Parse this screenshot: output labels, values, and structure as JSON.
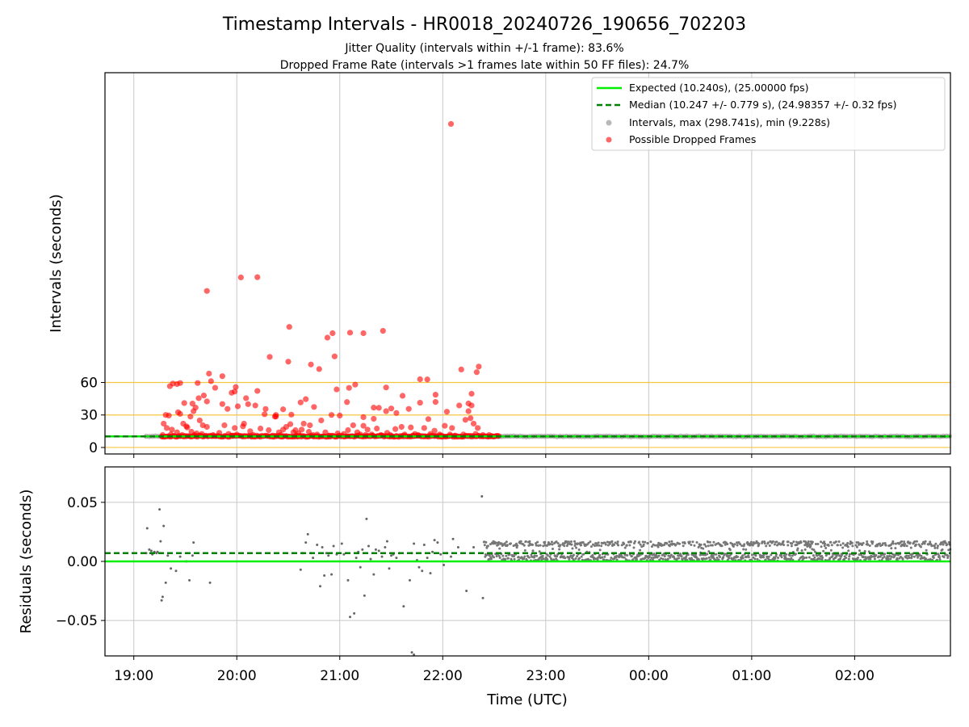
{
  "figure": {
    "title": "Timestamp Intervals - HR0018_20240726_190656_702203",
    "subtitle_1": "Jitter Quality (intervals within +/-1 frame): 83.6%",
    "subtitle_2": "Dropped Frame Rate (intervals >1 frames late within 50 FF files): 24.7%"
  },
  "colors": {
    "expected": "#00ee00",
    "median": "#008000",
    "intervals": "#888888",
    "dropped": "#ff0000",
    "hlines": "#f5c542",
    "grid": "#c8c8c8"
  },
  "chart_data": [
    {
      "type": "scatter",
      "name": "intervals-panel",
      "xlabel": "",
      "ylabel": "Intervals (seconds)",
      "x_unit": "hours since 19:00 UTC",
      "xlim": [
        -0.28,
        7.93
      ],
      "ylim": [
        -6,
        346
      ],
      "y_ticks": [
        0,
        30,
        60
      ],
      "y_tick_labels": [
        "0",
        "30",
        "60"
      ],
      "x_ticks": [
        0,
        1,
        2,
        3,
        4,
        5,
        6,
        7
      ],
      "x_tick_labels": [
        "19:00",
        "20:00",
        "21:00",
        "22:00",
        "23:00",
        "00:00",
        "01:00",
        "02:00"
      ],
      "hlines": [
        0,
        30,
        60
      ],
      "grid": "x",
      "legend": {
        "placement": "upper right",
        "expected": "Expected (10.240s), (25.00000 fps)",
        "median": "Median (10.247 +/- 0.779 s), (24.98357 +/- 0.32 fps)",
        "intervals": "Intervals, max (298.741s), min (9.228s)",
        "dropped": "Possible Dropped Frames"
      },
      "expected_value": 10.24,
      "median_value": 10.247,
      "intervals_range": [
        0.12,
        7.93
      ],
      "intervals_value": 10.24,
      "dense_range": [
        3.4,
        3.52
      ],
      "dense_value": 10.3,
      "dropped_points": [
        [
          3.08,
          298.7
        ],
        [
          1.04,
          157.0
        ],
        [
          0.71,
          144.5
        ],
        [
          1.2,
          157.2
        ],
        [
          1.51,
          111.3
        ],
        [
          1.93,
          105.5
        ],
        [
          2.1,
          106.0
        ],
        [
          2.23,
          105.5
        ],
        [
          2.42,
          107.7
        ],
        [
          1.88,
          101.4
        ],
        [
          1.95,
          84.1
        ],
        [
          1.97,
          53.6
        ],
        [
          2.07,
          41.9
        ],
        [
          2.33,
          36.8
        ],
        [
          2.45,
          55.4
        ],
        [
          2.61,
          47.7
        ],
        [
          2.78,
          63.0
        ],
        [
          2.85,
          62.8
        ],
        [
          2.93,
          48.7
        ],
        [
          0.79,
          55.1
        ],
        [
          0.99,
          55.8
        ],
        [
          1.11,
          40.0
        ],
        [
          1.32,
          83.6
        ],
        [
          1.5,
          79.2
        ],
        [
          1.67,
          44.6
        ],
        [
          1.72,
          76.6
        ],
        [
          1.8,
          72.4
        ],
        [
          0.73,
          68.2
        ],
        [
          0.86,
          65.8
        ],
        [
          1.2,
          52.2
        ],
        [
          1.38,
          30.0
        ],
        [
          1.45,
          16.5
        ],
        [
          1.57,
          16.0
        ],
        [
          1.63,
          16.5
        ],
        [
          3.35,
          74.7
        ],
        [
          3.33,
          69.5
        ],
        [
          3.18,
          72.0
        ],
        [
          3.16,
          38.8
        ],
        [
          3.25,
          33.5
        ],
        [
          3.28,
          49.6
        ],
        [
          3.25,
          40.6
        ],
        [
          3.28,
          38.8
        ],
        [
          0.38,
          59.0
        ],
        [
          0.35,
          56.6
        ],
        [
          0.42,
          58.5
        ],
        [
          0.45,
          59.5
        ],
        [
          0.62,
          59.5
        ],
        [
          0.75,
          61.2
        ],
        [
          0.98,
          51.6
        ],
        [
          1.09,
          45.5
        ],
        [
          1.18,
          38.8
        ],
        [
          1.27,
          30.7
        ],
        [
          1.37,
          28.5
        ],
        [
          1.53,
          30.3
        ],
        [
          1.62,
          41.6
        ],
        [
          1.75,
          37.4
        ],
        [
          2.09,
          55.0
        ],
        [
          2.15,
          58.0
        ],
        [
          2.33,
          26.5
        ],
        [
          2.38,
          36.6
        ],
        [
          2.45,
          33.5
        ],
        [
          2.55,
          31.8
        ],
        [
          2.67,
          35.6
        ],
        [
          0.31,
          30.0
        ],
        [
          0.34,
          29.5
        ],
        [
          0.55,
          28.5
        ],
        [
          0.71,
          42.5
        ],
        [
          0.86,
          40.1
        ],
        [
          0.91,
          35.6
        ],
        [
          1.01,
          38.0
        ],
        [
          1.13,
          15.0
        ],
        [
          2.78,
          41.3
        ],
        [
          2.86,
          26.2
        ],
        [
          3.04,
          33.0
        ],
        [
          2.23,
          28.0
        ],
        [
          2.5,
          36.0
        ],
        [
          2.93,
          42.0
        ],
        [
          0.45,
          31.0
        ],
        [
          0.58,
          33.5
        ],
        [
          0.6,
          36.8
        ],
        [
          0.49,
          41.0
        ],
        [
          0.57,
          40.5
        ],
        [
          0.63,
          45.5
        ],
        [
          0.68,
          48.0
        ],
        [
          0.95,
          50.5
        ],
        [
          0.98,
          18.0
        ],
        [
          1.07,
          22.0
        ],
        [
          1.28,
          35.5
        ],
        [
          1.38,
          28.5
        ],
        [
          1.45,
          35.2
        ],
        [
          1.52,
          21.5
        ],
        [
          0.43,
          32.5
        ],
        [
          0.48,
          22.0
        ],
        [
          0.51,
          19.5
        ],
        [
          0.64,
          25.0
        ],
        [
          0.67,
          20.5
        ],
        [
          0.71,
          19.0
        ],
        [
          1.65,
          22.0
        ],
        [
          1.71,
          20.5
        ],
        [
          1.82,
          25.0
        ],
        [
          1.92,
          30.0
        ],
        [
          2.0,
          29.5
        ],
        [
          2.13,
          20.5
        ],
        [
          2.23,
          20.0
        ],
        [
          2.27,
          16.5
        ],
        [
          2.36,
          17.5
        ],
        [
          2.46,
          13.5
        ],
        [
          2.54,
          17.0
        ],
        [
          2.6,
          19.0
        ],
        [
          2.69,
          18.5
        ],
        [
          2.73,
          12.5
        ],
        [
          2.82,
          18.0
        ],
        [
          2.88,
          12.5
        ],
        [
          2.92,
          15.5
        ],
        [
          3.02,
          20.0
        ],
        [
          3.09,
          18.0
        ],
        [
          3.22,
          25.5
        ],
        [
          3.27,
          27.0
        ],
        [
          3.3,
          22.0
        ],
        [
          3.34,
          18.0
        ],
        [
          0.29,
          22.0
        ],
        [
          0.32,
          18.0
        ],
        [
          0.37,
          16.5
        ],
        [
          0.42,
          14.0
        ],
        [
          0.52,
          18.5
        ],
        [
          0.56,
          14.5
        ],
        [
          0.61,
          13.0
        ],
        [
          0.83,
          13.5
        ],
        [
          0.88,
          20.5
        ],
        [
          0.92,
          12.5
        ],
        [
          1.0,
          12.0
        ],
        [
          1.06,
          19.5
        ],
        [
          1.23,
          17.5
        ],
        [
          1.31,
          16.0
        ],
        [
          1.41,
          14.0
        ],
        [
          1.48,
          19.0
        ],
        [
          1.55,
          14.0
        ],
        [
          1.6,
          13.0
        ],
        [
          1.7,
          14.5
        ],
        [
          1.78,
          12.0
        ],
        [
          1.86,
          14.0
        ],
        [
          1.9,
          11.0
        ],
        [
          1.98,
          13.0
        ],
        [
          2.04,
          12.5
        ],
        [
          2.08,
          16.0
        ],
        [
          2.17,
          14.0
        ],
        [
          2.2,
          12.0
        ],
        [
          2.31,
          12.0
        ],
        [
          2.4,
          11.5
        ],
        [
          2.49,
          11.5
        ],
        [
          2.63,
          12.0
        ],
        [
          2.76,
          11.5
        ],
        [
          2.97,
          12.0
        ],
        [
          3.07,
          12.0
        ],
        [
          3.2,
          12.0
        ],
        [
          3.32,
          12.5
        ],
        [
          0.28,
          11.5
        ],
        [
          0.36,
          12.0
        ],
        [
          0.47,
          11.5
        ],
        [
          0.59,
          11.5
        ],
        [
          0.66,
          12.5
        ],
        [
          0.77,
          11.5
        ],
        [
          0.96,
          11.0
        ],
        [
          1.16,
          11.5
        ],
        [
          1.35,
          11.0
        ],
        [
          1.43,
          11.5
        ],
        [
          1.58,
          11.0
        ],
        [
          1.74,
          11.5
        ],
        [
          2.25,
          11.5
        ],
        [
          2.71,
          11.0
        ],
        [
          2.99,
          11.0
        ],
        [
          3.12,
          11.0
        ],
        [
          3.39,
          11.5
        ],
        [
          3.45,
          11.5
        ]
      ],
      "dropped_band": {
        "x_range": [
          0.27,
          3.55
        ],
        "y": 10.4
      }
    },
    {
      "type": "scatter",
      "name": "residuals-panel",
      "xlabel": "Time (UTC)",
      "ylabel": "Residuals (seconds)",
      "x_unit": "hours since 19:00 UTC",
      "xlim": [
        -0.28,
        7.93
      ],
      "ylim": [
        -0.08,
        0.08
      ],
      "y_ticks": [
        -0.05,
        0.0,
        0.05
      ],
      "y_tick_labels": [
        "−0.05",
        "0.00",
        "0.05"
      ],
      "x_ticks": [
        0,
        1,
        2,
        3,
        4,
        5,
        6,
        7
      ],
      "x_tick_labels": [
        "19:00",
        "20:00",
        "21:00",
        "22:00",
        "23:00",
        "00:00",
        "01:00",
        "02:00"
      ],
      "grid": "both",
      "expected_value": 0.0,
      "median_value": 0.007,
      "dense_range": [
        3.4,
        7.93
      ],
      "dense_band": [
        0.0005,
        0.017
      ],
      "sparse_points": [
        [
          0.13,
          0.028
        ],
        [
          0.15,
          0.01
        ],
        [
          0.17,
          0.009
        ],
        [
          0.2,
          0.008
        ],
        [
          0.22,
          0.007
        ],
        [
          0.25,
          0.044
        ],
        [
          0.26,
          0.017
        ],
        [
          0.27,
          -0.033
        ],
        [
          0.28,
          -0.03
        ],
        [
          0.29,
          0.03
        ],
        [
          0.31,
          -0.018
        ],
        [
          0.36,
          -0.006
        ],
        [
          0.41,
          -0.008
        ],
        [
          0.45,
          0.004
        ],
        [
          0.51,
          0.0
        ],
        [
          0.54,
          -0.016
        ],
        [
          0.57,
          0.005
        ],
        [
          0.58,
          0.016
        ],
        [
          0.74,
          -0.018
        ],
        [
          0.12,
          0.007
        ],
        [
          0.18,
          0.006
        ],
        [
          0.23,
          0.008
        ],
        [
          0.33,
          0.005
        ],
        [
          1.62,
          -0.007
        ],
        [
          1.64,
          0.007
        ],
        [
          1.67,
          0.016
        ],
        [
          1.69,
          0.023
        ],
        [
          1.72,
          0.007
        ],
        [
          1.74,
          0.003
        ],
        [
          1.78,
          0.014
        ],
        [
          1.81,
          -0.021
        ],
        [
          1.83,
          0.012
        ],
        [
          1.85,
          -0.012
        ],
        [
          1.87,
          0.007
        ],
        [
          1.89,
          0.005
        ],
        [
          1.92,
          -0.011
        ],
        [
          1.94,
          0.013
        ],
        [
          1.97,
          0.006
        ],
        [
          2.02,
          0.015
        ],
        [
          2.08,
          -0.016
        ],
        [
          2.1,
          -0.047
        ],
        [
          2.14,
          -0.044
        ],
        [
          2.18,
          0.008
        ],
        [
          2.2,
          -0.005
        ],
        [
          2.22,
          0.01
        ],
        [
          2.24,
          -0.029
        ],
        [
          2.26,
          0.036
        ],
        [
          2.28,
          0.013
        ],
        [
          2.3,
          0.002
        ],
        [
          2.33,
          -0.011
        ],
        [
          2.35,
          0.01
        ],
        [
          2.38,
          0.009
        ],
        [
          2.41,
          0.004
        ],
        [
          2.44,
          0.012
        ],
        [
          2.46,
          0.017
        ],
        [
          2.48,
          -0.006
        ],
        [
          2.52,
          0.006
        ],
        [
          2.55,
          0.003
        ],
        [
          2.58,
          0.007
        ],
        [
          2.62,
          -0.038
        ],
        [
          2.68,
          -0.016
        ],
        [
          2.7,
          0.007
        ],
        [
          2.72,
          0.015
        ],
        [
          2.75,
          0.001
        ],
        [
          2.77,
          -0.005
        ],
        [
          2.8,
          -0.008
        ],
        [
          2.82,
          0.014
        ],
        [
          2.85,
          0.003
        ],
        [
          2.88,
          -0.01
        ],
        [
          2.92,
          0.018
        ],
        [
          2.95,
          0.016
        ],
        [
          2.98,
          0.006
        ],
        [
          3.01,
          -0.003
        ],
        [
          3.04,
          0.007
        ],
        [
          3.1,
          0.019
        ],
        [
          3.15,
          0.012
        ],
        [
          3.23,
          -0.025
        ],
        [
          3.3,
          0.012
        ],
        [
          3.38,
          0.055
        ],
        [
          3.39,
          -0.031
        ],
        [
          2.7,
          -0.077
        ],
        [
          2.72,
          -0.079
        ],
        [
          2.04,
          0.006
        ],
        [
          2.16,
          0.003
        ],
        [
          2.5,
          0.005
        ],
        [
          2.9,
          0.008
        ],
        [
          3.08,
          0.004
        ]
      ]
    }
  ]
}
